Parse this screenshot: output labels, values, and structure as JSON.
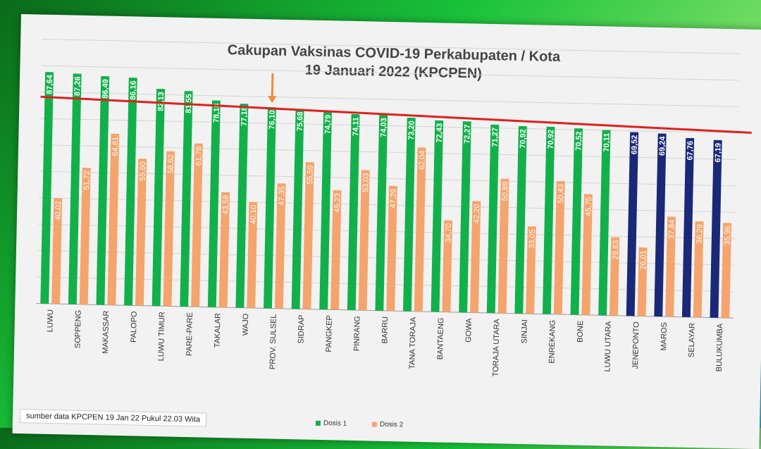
{
  "chart_data": {
    "type": "bar",
    "title": "Cakupan Vaksinas COVID-19 Perkabupaten / Kota",
    "subtitle": "19 Januari 2022 (KPCPEN)",
    "categories": [
      "LUWU",
      "SOPPENG",
      "MAKASSAR",
      "PALOPO",
      "LUWU TIMUR",
      "PARE-PARE",
      "TAKALAR",
      "WAJO",
      "PROV. SULSEL",
      "SIDRAP",
      "PANGKEP",
      "PINRANG",
      "BARRU",
      "TANA TORAJA",
      "BANTAENG",
      "GOWA",
      "TORAJA UTARA",
      "SINJAI",
      "ENREKANG",
      "BONE",
      "LUWU UTARA",
      "JENEPONTO",
      "MAROS",
      "SELAYAR",
      "BULUKUMBA"
    ],
    "series": [
      {
        "name": "Dosis 1",
        "values": [
          87.64,
          87.26,
          86.49,
          86.16,
          82.13,
          81.55,
          78.18,
          77.18,
          76.1,
          75.68,
          74.79,
          74.11,
          74.03,
          73.2,
          72.43,
          72.27,
          71.27,
          70.92,
          70.92,
          70.52,
          70.11,
          69.52,
          69.24,
          67.76,
          67.19
        ]
      },
      {
        "name": "Dosis 2",
        "values": [
          40.02,
          51.72,
          64.81,
          55.6,
          58.62,
          61.78,
          43.58,
          40.1,
          47.35,
          55.59,
          45.23,
          53.03,
          47.29,
          62.04,
          34.7,
          42.2,
          50.89,
          33.05,
          50.43,
          45.75,
          29.63,
          26.01,
          37.84,
          36.29,
          35.96
        ]
      }
    ],
    "ylim": [
      0,
      100
    ],
    "grid": true,
    "reference_line": 76.1,
    "highlight": "PROV. SULSEL",
    "legend_position": "bottom",
    "colors": {
      "dosis1": "#12b04a",
      "dosis1_below": "#1a2878",
      "dosis2": "#f4a46c",
      "reference": "#e0201c",
      "arrow": "#f08a3c"
    }
  },
  "source": "sumber data KPCPEN 19 Jan 22 Pukul 22.03 Wita"
}
